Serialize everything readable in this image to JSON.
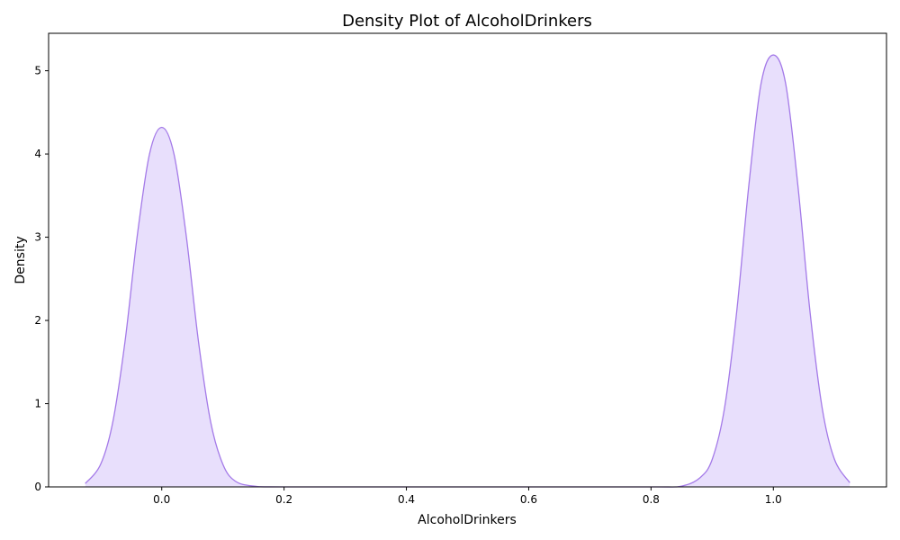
{
  "colors": {
    "line": "#a47ae8",
    "fill": "#e8dffc",
    "axis": "#000000",
    "background": "#ffffff"
  },
  "chart_data": {
    "type": "area",
    "title": "Density Plot of AlcoholDrinkers",
    "xlabel": "AlcoholDrinkers",
    "ylabel": "Density",
    "xlim": [
      -0.185,
      1.185
    ],
    "ylim": [
      0,
      5.45
    ],
    "xticks": [
      0.0,
      0.2,
      0.4,
      0.6,
      0.8,
      1.0
    ],
    "xtick_labels": [
      "0.0",
      "0.2",
      "0.4",
      "0.6",
      "0.8",
      "1.0"
    ],
    "yticks": [
      0,
      1,
      2,
      3,
      4,
      5
    ],
    "ytick_labels": [
      "0",
      "1",
      "2",
      "3",
      "4",
      "5"
    ],
    "grid": false,
    "legend": "none",
    "series": [
      {
        "x": [
          -0.125,
          -0.1,
          -0.08,
          -0.06,
          -0.04,
          -0.02,
          0.0,
          0.02,
          0.04,
          0.06,
          0.08,
          0.1,
          0.12,
          0.15,
          0.2,
          0.4,
          0.6,
          0.8,
          0.85,
          0.88,
          0.9,
          0.92,
          0.94,
          0.96,
          0.98,
          1.0,
          1.02,
          1.04,
          1.06,
          1.08,
          1.1,
          1.125
        ],
        "y": [
          0.04,
          0.27,
          0.78,
          1.75,
          3.02,
          4.0,
          4.32,
          4.0,
          3.02,
          1.75,
          0.78,
          0.27,
          0.07,
          0.01,
          0.0,
          0.0,
          0.0,
          0.0,
          0.01,
          0.11,
          0.33,
          0.94,
          2.1,
          3.63,
          4.85,
          5.19,
          4.85,
          3.63,
          2.1,
          0.94,
          0.33,
          0.05
        ]
      }
    ]
  }
}
